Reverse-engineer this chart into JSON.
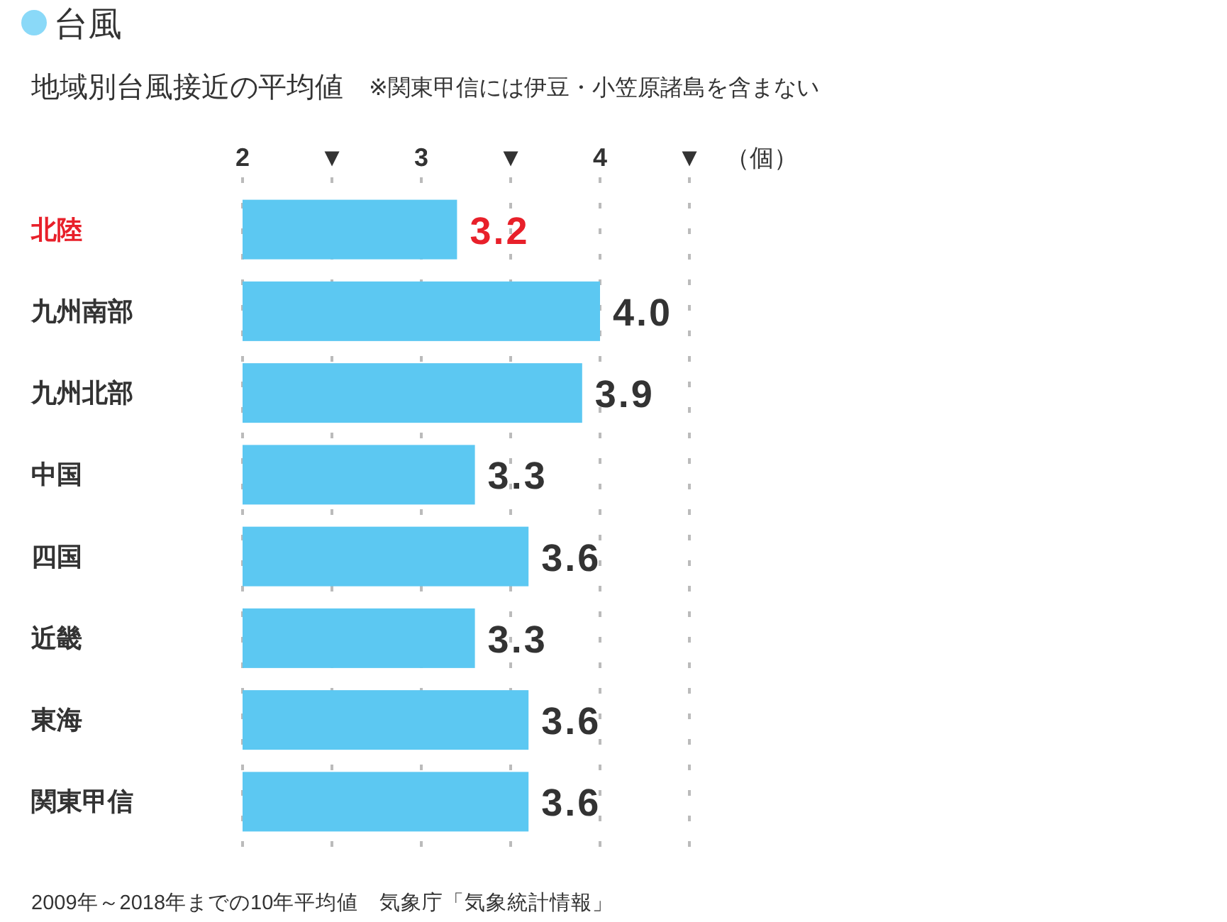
{
  "chart_data": {
    "type": "bar",
    "orientation": "horizontal",
    "title": "台風",
    "subtitle": "地域別台風接近の平均値",
    "xlabel": "（個）",
    "categories": [
      "北陸",
      "九州南部",
      "九州北部",
      "中国",
      "四国",
      "近畿",
      "東海",
      "関東甲信"
    ],
    "values": [
      3.2,
      4.0,
      3.9,
      3.3,
      3.6,
      3.3,
      3.6,
      3.6
    ],
    "value_labels": [
      "3.2",
      "4.0",
      "3.9",
      "3.3",
      "3.6",
      "3.3",
      "3.6",
      "3.6"
    ],
    "color": "#5cc8f2",
    "xlim": [
      2,
      4.5
    ],
    "xticks": [
      2,
      {
        "value": 2.5,
        "label": "▼"
      },
      3,
      {
        "value": 3.5,
        "label": "▼"
      },
      4,
      {
        "value": 4.5,
        "label": "▼"
      }
    ],
    "grid": "x",
    "annotations": [
      "※関東甲信には伊豆・小笠原諸島を含まない",
      "2009年～2018年までの10年平均値　気象庁「気象統計情報」"
    ]
  }
}
